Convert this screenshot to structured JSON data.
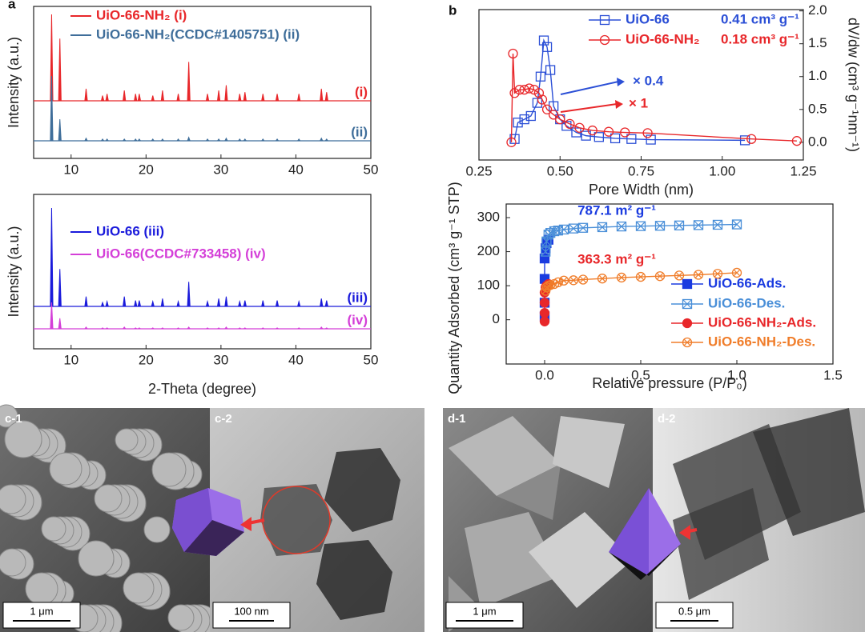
{
  "panel_labels": [
    "a",
    "b"
  ],
  "chart_data": [
    {
      "type": "spectrum",
      "y_label": "Intensity (a.u.)",
      "legend": "upper left",
      "xlim": [
        5,
        50
      ],
      "xticks": [
        10,
        20,
        30,
        40,
        50
      ],
      "x": [
        7.4,
        8.5,
        12.0,
        14.2,
        14.8,
        17.1,
        18.6,
        19.1,
        20.9,
        22.2,
        24.3,
        25.7,
        28.2,
        29.7,
        30.7,
        32.5,
        33.2,
        35.6,
        37.5,
        40.4,
        43.4,
        44.1
      ],
      "series": [
        {
          "name": "UiO-66-NH₂ (i)",
          "label": "(i)",
          "color": "#e8272a",
          "values": [
            100,
            72,
            14,
            6,
            8,
            12,
            8,
            8,
            6,
            12,
            8,
            45,
            8,
            12,
            18,
            8,
            10,
            8,
            8,
            8,
            14,
            10
          ]
        },
        {
          "name": "UiO-66-NH₂(CCDC#1405751) (ii)",
          "label": "(ii)",
          "color": "#3f6e9a",
          "values": [
            75,
            25,
            3,
            2,
            2,
            2,
            2,
            2,
            2,
            2,
            2,
            4,
            2,
            2,
            3,
            2,
            2,
            2,
            2,
            2,
            3,
            2
          ]
        }
      ]
    },
    {
      "type": "spectrum",
      "x_label": "2-Theta (degree)",
      "y_label": "Intensity (a.u.)",
      "legend": "upper left",
      "xlim": [
        5,
        50
      ],
      "xticks": [
        10,
        20,
        30,
        40,
        50
      ],
      "x": [
        7.4,
        8.5,
        12.0,
        14.2,
        14.8,
        17.1,
        18.6,
        19.1,
        20.9,
        22.2,
        24.3,
        25.7,
        28.2,
        29.7,
        30.7,
        32.5,
        33.2,
        35.6,
        37.5,
        40.4,
        43.4,
        44.1
      ],
      "series": [
        {
          "name": "UiO-66   (iii)",
          "label": "(iii)",
          "color": "#1a1adb",
          "values": [
            100,
            38,
            10,
            4,
            5,
            10,
            6,
            6,
            5,
            8,
            5,
            25,
            5,
            8,
            10,
            5,
            6,
            6,
            6,
            5,
            8,
            6
          ]
        },
        {
          "name": "UiO-66(CCDC#733458)  (iv)",
          "label": "(iv)",
          "color": "#d43fd8",
          "values": [
            30,
            12,
            2,
            1,
            1,
            2,
            1,
            1,
            1,
            1,
            1,
            2,
            1,
            1,
            2,
            1,
            1,
            1,
            1,
            1,
            2,
            1
          ]
        }
      ]
    },
    {
      "type": "line",
      "x_label": "Pore Width (nm)",
      "y_label": "dV/dw (cm³ g⁻¹nm⁻¹)",
      "y_axis_side": "right",
      "legend": "upper center",
      "xlim": [
        0.25,
        1.25
      ],
      "xticks": [
        0.25,
        {
          "value": 0.5,
          "label": "0.50"
        },
        0.75,
        {
          "value": 1,
          "label": "1.00"
        },
        1.25
      ],
      "ylim": [
        -0.27,
        2.02
      ],
      "yticks": [
        {
          "value": 0,
          "label": "0.0"
        },
        0.5,
        {
          "value": 1,
          "label": "1.0"
        },
        1.5,
        {
          "value": 2,
          "label": "2.0"
        }
      ],
      "series": [
        {
          "name": "UiO-66",
          "color": "#2b4fd6",
          "marker": "square",
          "x": [
            0.36,
            0.37,
            0.39,
            0.41,
            0.43,
            0.44,
            0.45,
            0.46,
            0.47,
            0.48,
            0.5,
            0.52,
            0.55,
            0.58,
            0.62,
            0.67,
            0.72,
            0.78,
            1.07
          ],
          "values": [
            0.05,
            0.3,
            0.35,
            0.4,
            0.6,
            1.0,
            1.55,
            1.45,
            1.1,
            0.55,
            0.35,
            0.25,
            0.15,
            0.1,
            0.08,
            0.06,
            0.05,
            0.04,
            0.03
          ]
        },
        {
          "name": "UiO-66-NH₂",
          "color": "#e8272a",
          "marker": "circle",
          "x": [
            0.35,
            0.355,
            0.36,
            0.375,
            0.39,
            0.405,
            0.42,
            0.435,
            0.445,
            0.46,
            0.48,
            0.5,
            0.53,
            0.56,
            0.6,
            0.65,
            0.7,
            0.77,
            1.09,
            1.23
          ],
          "values": [
            0.0,
            1.35,
            0.75,
            0.8,
            0.8,
            0.82,
            0.8,
            0.75,
            0.65,
            0.5,
            0.42,
            0.35,
            0.28,
            0.22,
            0.18,
            0.16,
            0.15,
            0.14,
            0.05,
            0.02
          ]
        }
      ],
      "annotations": [
        {
          "text": "0.41 cm³ g⁻¹",
          "color": "#2b4fd6"
        },
        {
          "text": "0.18 cm³ g⁻¹",
          "color": "#e8272a"
        },
        {
          "text": "× 0.4",
          "color": "#2b4fd6"
        },
        {
          "text": "× 1",
          "color": "#e8272a"
        }
      ]
    },
    {
      "type": "line",
      "x_label": "Relative pressure (P/P₀)",
      "y_label": "Quantity Adsorbed (cm³ g⁻¹ STP)",
      "legend": "lower right",
      "xlim": [
        -0.2,
        1.5
      ],
      "xticks": [
        {
          "value": 0,
          "label": "0.0"
        },
        0.5,
        {
          "value": 1,
          "label": "1.0"
        },
        1.5
      ],
      "ylim": [
        -130,
        340
      ],
      "yticks": [
        0,
        100,
        200,
        300
      ],
      "series": [
        {
          "name": "UiO-66-Ads.",
          "color": "#1a3be0",
          "marker": "filled-square",
          "x": [
            0,
            0,
            0,
            0,
            0.005,
            0.01,
            0.02
          ],
          "values": [
            10,
            50,
            120,
            180,
            210,
            225,
            235
          ]
        },
        {
          "name": "UiO-66-Des.",
          "color": "#4a8fd8",
          "marker": "crossed-square",
          "x": [
            1.0,
            0.9,
            0.8,
            0.7,
            0.6,
            0.5,
            0.4,
            0.3,
            0.2,
            0.15,
            0.1,
            0.07,
            0.05,
            0.03,
            0.02,
            0.01,
            0.005
          ],
          "values": [
            280,
            279,
            278,
            277,
            276,
            275,
            274,
            272,
            270,
            268,
            265,
            262,
            260,
            255,
            250,
            230,
            200
          ]
        },
        {
          "name": "UiO-66-NH₂-Ads.",
          "color": "#e8272a",
          "marker": "filled-circle",
          "x": [
            0,
            0,
            0,
            0,
            0.005,
            0.01,
            0.02
          ],
          "values": [
            -5,
            20,
            50,
            80,
            95,
            100,
            105
          ]
        },
        {
          "name": "UiO-66-NH₂-Des.",
          "color": "#f07d2a",
          "marker": "crossed-circle",
          "x": [
            1.0,
            0.9,
            0.8,
            0.7,
            0.6,
            0.5,
            0.4,
            0.3,
            0.2,
            0.15,
            0.1,
            0.07,
            0.05,
            0.03,
            0.02,
            0.01,
            0.005
          ],
          "values": [
            138,
            135,
            132,
            130,
            128,
            126,
            124,
            121,
            118,
            116,
            115,
            110,
            105,
            102,
            100,
            95,
            85
          ]
        }
      ],
      "annotations": [
        {
          "text": "787.1 m² g⁻¹",
          "color": "#1a3be0"
        },
        {
          "text": "363.3 m² g⁻¹",
          "color": "#e8272a"
        }
      ]
    }
  ],
  "micrographs": [
    {
      "label": "c-1",
      "scale_bar": "1 μm"
    },
    {
      "label": "c-2",
      "scale_bar": "100 nm"
    },
    {
      "label": "d-1",
      "scale_bar": "1 μm"
    },
    {
      "label": "d-2",
      "scale_bar": "0.5 μm"
    }
  ]
}
